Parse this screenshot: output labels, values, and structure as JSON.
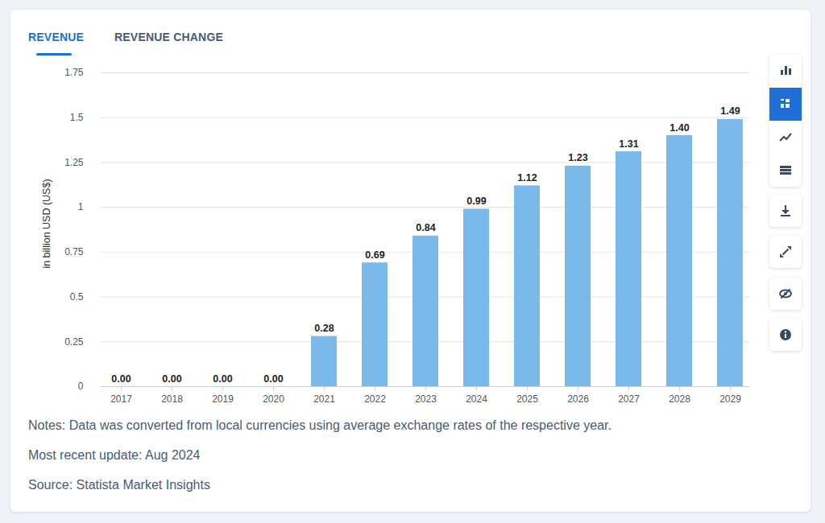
{
  "tabs": [
    {
      "label": "REVENUE",
      "active": true
    },
    {
      "label": "REVENUE CHANGE",
      "active": false
    }
  ],
  "chart_data": {
    "type": "bar",
    "y_label": "in billion USD (US$)",
    "categories": [
      "2017",
      "2018",
      "2019",
      "2020",
      "2021",
      "2022",
      "2023",
      "2024",
      "2025",
      "2026",
      "2027",
      "2028",
      "2029"
    ],
    "values": [
      0,
      0,
      0,
      0,
      0.28,
      0.69,
      0.84,
      0.99,
      1.12,
      1.23,
      1.31,
      1.4,
      1.49
    ],
    "value_labels": [
      "0.00",
      "0.00",
      "0.00",
      "0.00",
      "0.28",
      "0.69",
      "0.84",
      "0.99",
      "1.12",
      "1.23",
      "1.31",
      "1.40",
      "1.49"
    ],
    "color": "#7ab9e9",
    "ylim": [
      0,
      1.75
    ],
    "yticks": [
      0,
      0.25,
      0.5,
      0.75,
      1,
      1.25,
      1.5,
      1.75
    ],
    "grid": true,
    "data_labels": true
  },
  "notes": [
    "Notes: Data was converted from local currencies using average exchange rates of the respective year.",
    "Most recent update: Aug 2024",
    "Source: Statista Market Insights"
  ]
}
